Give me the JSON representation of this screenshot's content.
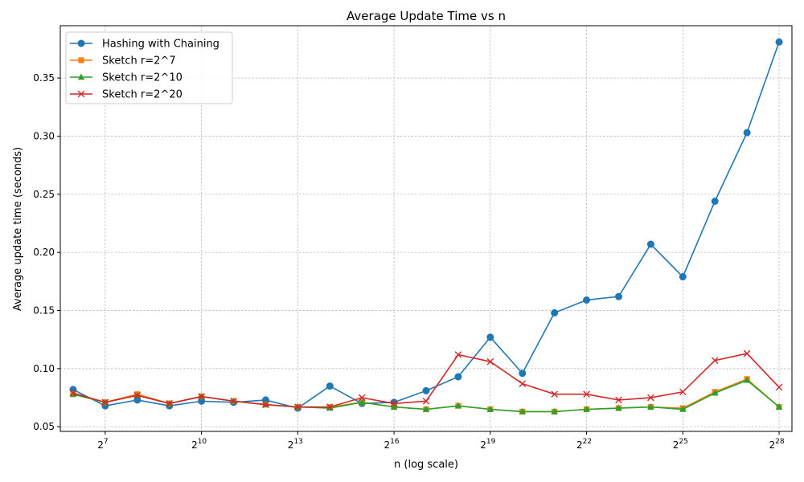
{
  "chart_data": {
    "type": "line",
    "title": "Average Update Time vs n",
    "xlabel": "n (log scale)",
    "ylabel": "Average update time (seconds)",
    "x_scale": "log2",
    "x_exponents": [
      6,
      7,
      8,
      9,
      10,
      11,
      12,
      13,
      14,
      15,
      16,
      17,
      18,
      19,
      20,
      21,
      22,
      23,
      24,
      25,
      26,
      27,
      28
    ],
    "x_tick_base": "2",
    "x_tick_exponents": [
      "7",
      "10",
      "13",
      "16",
      "19",
      "22",
      "25",
      "28"
    ],
    "xlim_exponent": [
      5.6,
      28.4
    ],
    "ylim": [
      0.046,
      0.395
    ],
    "y_ticks": [
      "0.05",
      "0.10",
      "0.15",
      "0.20",
      "0.25",
      "0.30",
      "0.35"
    ],
    "grid": true,
    "legend_position": "top-left",
    "series": [
      {
        "name": "Hashing with Chaining",
        "color": "#1f77b4",
        "marker": "circle",
        "values": [
          0.082,
          0.068,
          0.073,
          0.068,
          0.072,
          0.071,
          0.073,
          0.066,
          0.085,
          0.07,
          0.071,
          0.081,
          0.093,
          0.127,
          0.096,
          0.148,
          0.159,
          0.162,
          0.207,
          0.179,
          0.244,
          0.303,
          0.381
        ]
      },
      {
        "name": "Sketch r=2^7",
        "color": "#ff7f0e",
        "marker": "square",
        "values": [
          0.078,
          0.071,
          0.078,
          0.07,
          0.076,
          0.072,
          0.069,
          0.067,
          0.067,
          0.071,
          0.067,
          0.065,
          0.068,
          0.065,
          0.063,
          0.063,
          0.065,
          0.066,
          0.067,
          0.066,
          0.08,
          0.091,
          0.067
        ]
      },
      {
        "name": "Sketch r=2^10",
        "color": "#2ca02c",
        "marker": "triangle",
        "values": [
          0.078,
          0.071,
          0.077,
          0.07,
          0.076,
          0.072,
          0.069,
          0.067,
          0.066,
          0.071,
          0.067,
          0.065,
          0.068,
          0.065,
          0.063,
          0.063,
          0.065,
          0.066,
          0.067,
          0.065,
          0.079,
          0.09,
          0.067
        ]
      },
      {
        "name": "Sketch r=2^20",
        "color": "#d62728",
        "marker": "x",
        "values": [
          0.079,
          0.071,
          0.077,
          0.07,
          0.076,
          0.072,
          0.069,
          0.067,
          0.067,
          0.075,
          0.07,
          0.072,
          0.112,
          0.106,
          0.087,
          0.078,
          0.078,
          0.073,
          0.075,
          0.08,
          0.107,
          0.113,
          0.084
        ]
      }
    ]
  }
}
